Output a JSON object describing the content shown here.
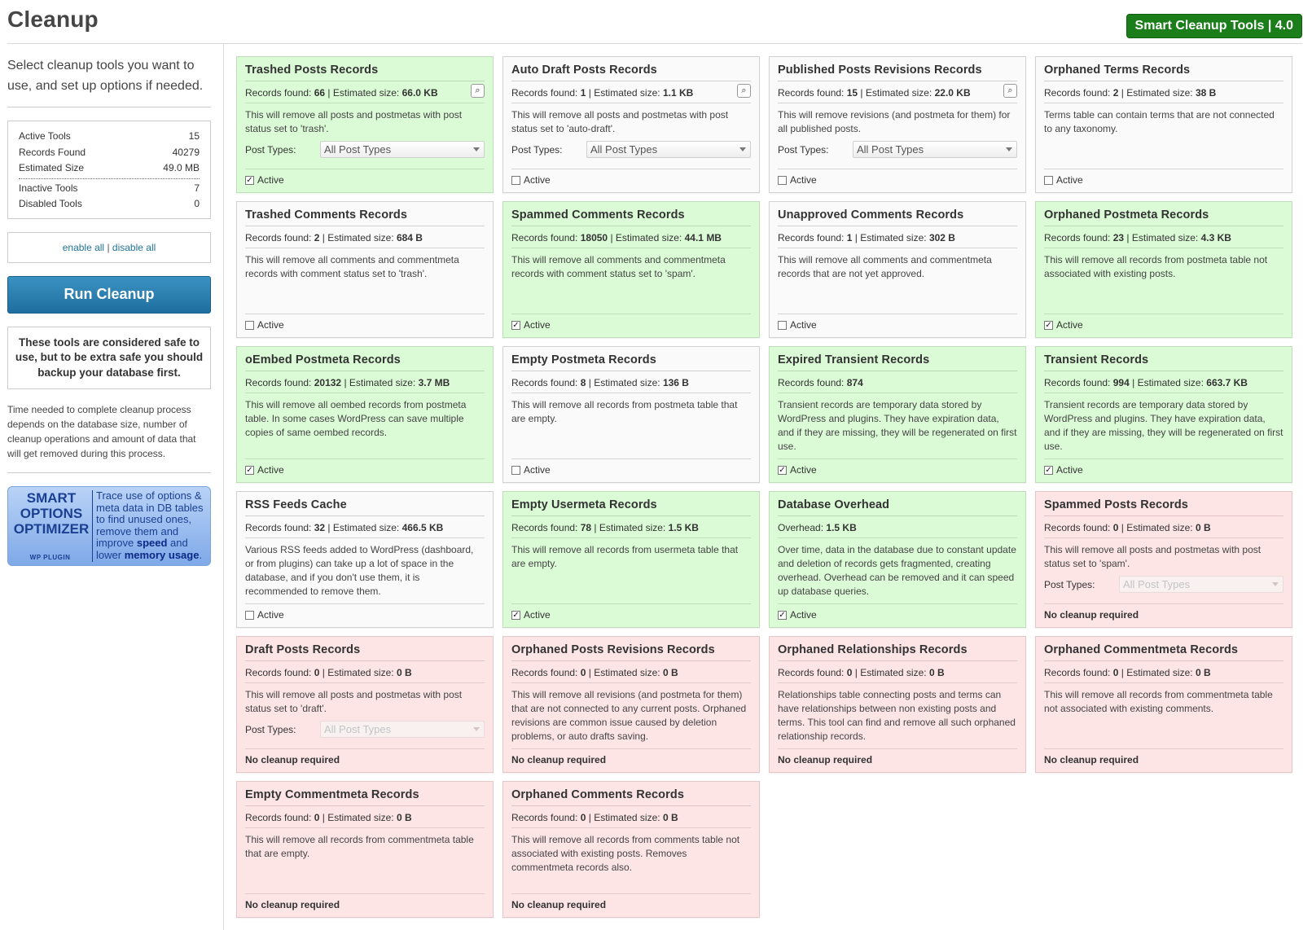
{
  "page": {
    "title": "Cleanup",
    "badge": "Smart Cleanup Tools | 4.0"
  },
  "sidebar": {
    "intro": "Select cleanup tools you want to use, and set up options if needed.",
    "stats": [
      {
        "label": "Active Tools",
        "value": "15"
      },
      {
        "label": "Records Found",
        "value": "40279"
      },
      {
        "label": "Estimated Size",
        "value": "49.0 MB"
      },
      {
        "label": "Inactive Tools",
        "value": "7"
      },
      {
        "label": "Disabled Tools",
        "value": "0"
      }
    ],
    "enable_all": "enable all",
    "separator": "|",
    "disable_all": "disable all",
    "run_button": "Run Cleanup",
    "warning": "These tools are considered safe to use, but to be extra safe you should backup your database first.",
    "time_note": "Time needed to complete cleanup process depends on the database size, number of cleanup operations and amount of data that will get removed during this process.",
    "promo": {
      "title_lines": [
        "SMART",
        "OPTIONS",
        "OPTIMIZER"
      ],
      "wp_label": "WP PLUGIN",
      "text_1": "Trace use of options & meta data in DB tables to find unused ones, remove them and improve ",
      "bold_1": "speed",
      "text_2": " and lower ",
      "bold_2": "memory usage",
      "text_3": "."
    }
  },
  "labels": {
    "records_found": "Records found:",
    "estimated_size": "Estimated size:",
    "overhead": "Overhead:",
    "post_types": "Post Types:",
    "active": "Active",
    "no_cleanup": "No cleanup required",
    "all_post_types": "All Post Types",
    "search_icon_glyph": "⌕",
    "check_glyph": "✓"
  },
  "colors": {
    "green": "#dbfbd6",
    "white": "#fafafa",
    "red": "#fde5e5",
    "badge": "#1b7e1b",
    "button": "#1f6f9f"
  },
  "cards": [
    {
      "title": "Trashed Posts Records",
      "records": "66",
      "size": "66.0 KB",
      "desc": "This will remove all posts and postmetas with post status set to 'trash'.",
      "state": "green",
      "checked": true,
      "post_types": true,
      "search": true
    },
    {
      "title": "Auto Draft Posts Records",
      "records": "1",
      "size": "1.1 KB",
      "desc": "This will remove all posts and postmetas with post status set to 'auto-draft'.",
      "state": "white",
      "checked": false,
      "post_types": true,
      "search": true
    },
    {
      "title": "Published Posts Revisions Records",
      "records": "15",
      "size": "22.0 KB",
      "desc": "This will remove revisions (and postmeta for them) for all published posts.",
      "state": "white",
      "checked": false,
      "post_types": true,
      "search": true
    },
    {
      "title": "Orphaned Terms Records",
      "records": "2",
      "size": "38 B",
      "desc": "Terms table can contain terms that are not connected to any taxonomy.",
      "state": "white",
      "checked": false
    },
    {
      "title": "Trashed Comments Records",
      "records": "2",
      "size": "684 B",
      "desc": "This will remove all comments and commentmeta records with comment status set to 'trash'.",
      "state": "white",
      "checked": false
    },
    {
      "title": "Spammed Comments Records",
      "records": "18050",
      "size": "44.1 MB",
      "desc": "This will remove all comments and commentmeta records with comment status set to 'spam'.",
      "state": "green",
      "checked": true
    },
    {
      "title": "Unapproved Comments Records",
      "records": "1",
      "size": "302 B",
      "desc": "This will remove all comments and commentmeta records that are not yet approved.",
      "state": "white",
      "checked": false
    },
    {
      "title": "Orphaned Postmeta Records",
      "records": "23",
      "size": "4.3 KB",
      "desc": "This will remove all records from postmeta table not associated with existing posts.",
      "state": "green",
      "checked": true
    },
    {
      "title": "oEmbed Postmeta Records",
      "records": "20132",
      "size": "3.7 MB",
      "desc": "This will remove all oembed records from postmeta table. In some cases WordPress can save multiple copies of same oembed records.",
      "state": "green",
      "checked": true
    },
    {
      "title": "Empty Postmeta Records",
      "records": "8",
      "size": "136 B",
      "desc": "This will remove all records from postmeta table that are empty.",
      "state": "white",
      "checked": false
    },
    {
      "title": "Expired Transient Records",
      "records": "874",
      "desc": "Transient records are temporary data stored by WordPress and plugins. They have expiration data, and if they are missing, they will be regenerated on first use.",
      "state": "green",
      "checked": true
    },
    {
      "title": "Transient Records",
      "records": "994",
      "size": "663.7 KB",
      "desc": "Transient records are temporary data stored by WordPress and plugins. They have expiration data, and if they are missing, they will be regenerated on first use.",
      "state": "green",
      "checked": true
    },
    {
      "title": "RSS Feeds Cache",
      "records": "32",
      "size": "466.5 KB",
      "desc": "Various RSS feeds added to WordPress (dashboard, or from plugins) can take up a lot of space in the database, and if you don't use them, it is recommended to remove them.",
      "state": "white",
      "checked": false
    },
    {
      "title": "Empty Usermeta Records",
      "records": "78",
      "size": "1.5 KB",
      "desc": "This will remove all records from usermeta table that are empty.",
      "state": "green",
      "checked": true
    },
    {
      "title": "Database Overhead",
      "overhead": "1.5 KB",
      "desc": "Over time, data in the database due to constant update and deletion of records gets fragmented, creating overhead. Overhead can be removed and it can speed up database queries.",
      "state": "green",
      "checked": true
    },
    {
      "title": "Spammed Posts Records",
      "records": "0",
      "size": "0 B",
      "desc": "This will remove all posts and postmetas with post status set to 'spam'.",
      "state": "red",
      "post_types": true,
      "disabled_select": true
    },
    {
      "title": "Draft Posts Records",
      "records": "0",
      "size": "0 B",
      "desc": "This will remove all posts and postmetas with post status set to 'draft'.",
      "state": "red",
      "post_types": true,
      "disabled_select": true
    },
    {
      "title": "Orphaned Posts Revisions Records",
      "records": "0",
      "size": "0 B",
      "desc": "This will remove all revisions (and postmeta for them) that are not connected to any current posts. Orphaned revisions are common issue caused by deletion problems, or auto drafts saving.",
      "state": "red"
    },
    {
      "title": "Orphaned Relationships Records",
      "records": "0",
      "size": "0 B",
      "desc": "Relationships table connecting posts and terms can have relationships between non existing posts and terms. This tool can find and remove all such orphaned relationship records.",
      "state": "red"
    },
    {
      "title": "Orphaned Commentmeta Records",
      "records": "0",
      "size": "0 B",
      "desc": "This will remove all records from commentmeta table not associated with existing comments.",
      "state": "red"
    },
    {
      "title": "Empty Commentmeta Records",
      "records": "0",
      "size": "0 B",
      "desc": "This will remove all records from commentmeta table that are empty.",
      "state": "red"
    },
    {
      "title": "Orphaned Comments Records",
      "records": "0",
      "size": "0 B",
      "desc": "This will remove all records from comments table not associated with existing posts. Removes commentmeta records also.",
      "state": "red"
    }
  ]
}
